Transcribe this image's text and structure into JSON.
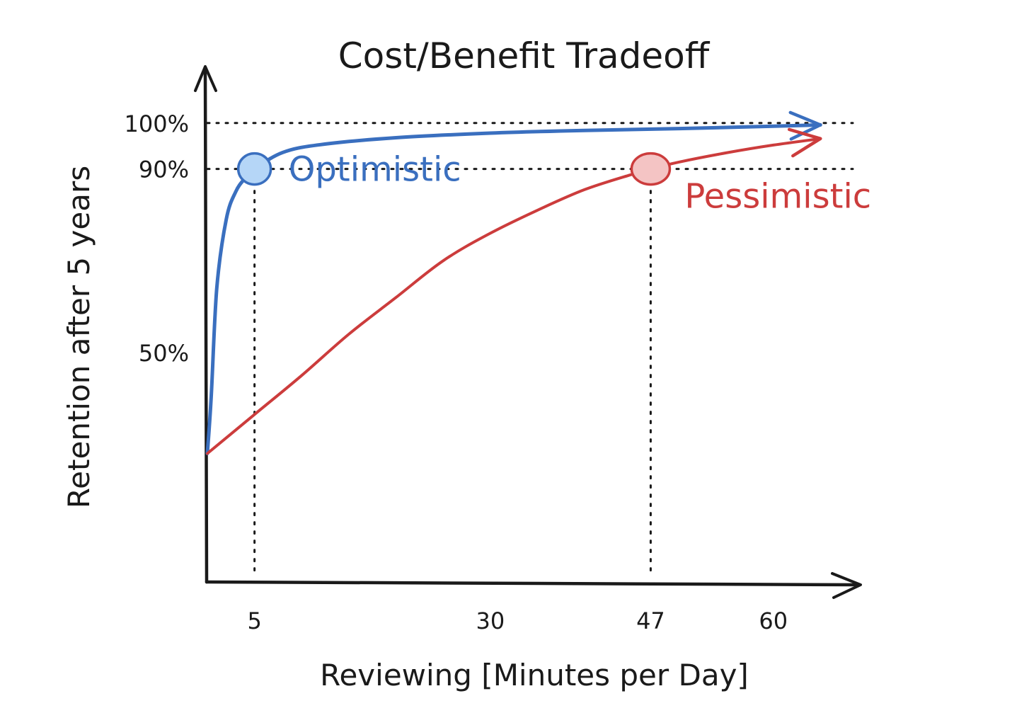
{
  "chart_data": {
    "type": "line",
    "title": "Cost/Benefit Tradeoff",
    "xlabel": "Reviewing [Minutes per Day]",
    "ylabel": "Retention after 5 years",
    "xlim": [
      0,
      67
    ],
    "ylim": [
      0,
      112
    ],
    "x_ticks": [
      {
        "value": 5,
        "label": "5"
      },
      {
        "value": 30,
        "label": "30"
      },
      {
        "value": 47,
        "label": "47"
      },
      {
        "value": 60,
        "label": "60"
      }
    ],
    "y_ticks": [
      {
        "value": 50,
        "label": "50%"
      },
      {
        "value": 90,
        "label": "90%"
      },
      {
        "value": 100,
        "label": "100%"
      }
    ],
    "grid": false,
    "series": [
      {
        "name": "Optimistic",
        "color": "#3a6fbf",
        "marker_fill": "#b5d6f7",
        "highlight": {
          "x": 5,
          "y": 90
        },
        "x": [
          0,
          0.4,
          1,
          2,
          3,
          4,
          5,
          8,
          12,
          20,
          30,
          40,
          50,
          60,
          65
        ],
        "y": [
          28,
          40,
          64,
          79,
          85,
          88,
          90,
          93.6,
          95.3,
          96.8,
          97.8,
          98.4,
          98.8,
          99.3,
          99.6
        ]
      },
      {
        "name": "Pessimistic",
        "color": "#cc3c3c",
        "marker_fill": "#f4c4c4",
        "highlight": {
          "x": 47,
          "y": 90
        },
        "x": [
          0,
          5,
          10,
          15,
          20,
          25,
          30,
          35,
          40,
          45,
          47,
          50,
          55,
          60,
          65
        ],
        "y": [
          28,
          36.5,
          45,
          54,
          62,
          70,
          76,
          81,
          85.5,
          88.8,
          90,
          91.5,
          93.5,
          95.2,
          96.6
        ]
      }
    ],
    "reference_lines": [
      {
        "orientation": "horizontal",
        "y": 100,
        "style": "dotted"
      },
      {
        "orientation": "horizontal",
        "y": 90,
        "style": "dotted"
      },
      {
        "orientation": "vertical",
        "x": 5,
        "style": "dotted"
      },
      {
        "orientation": "vertical",
        "x": 47,
        "style": "dotted"
      }
    ]
  }
}
